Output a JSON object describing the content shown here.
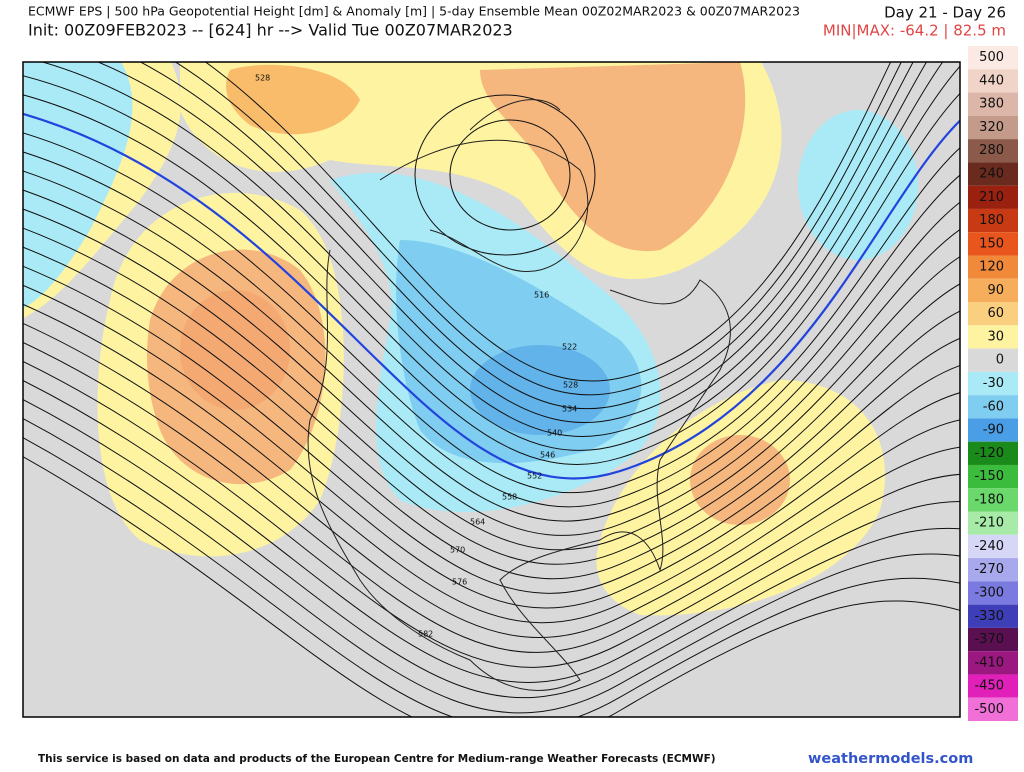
{
  "header": {
    "title": "ECMWF EPS | 500 hPa Geopotential Height [dm] & Anomaly [m] | 5-day Ensemble Mean 00Z02MAR2023 & 00Z07MAR2023",
    "subtitle": "Init: 00Z09FEB2023 -- [624] hr --> Valid Tue 00Z07MAR2023",
    "period": "Day 21 - Day 26",
    "minmax": "MIN|MAX: -64.2 | 82.5 m"
  },
  "contour_labels": [
    "516",
    "522",
    "528",
    "534",
    "540",
    "546",
    "552",
    "558",
    "564",
    "570",
    "576",
    "582",
    "528"
  ],
  "colorbar": [
    {
      "label": "500",
      "color": "#fbe9e4"
    },
    {
      "label": "440",
      "color": "#f1d4c8"
    },
    {
      "label": "380",
      "color": "#dcb6a8"
    },
    {
      "label": "320",
      "color": "#c49a8a"
    },
    {
      "label": "280",
      "color": "#8c5a4a"
    },
    {
      "label": "240",
      "color": "#6a2a1e"
    },
    {
      "label": "210",
      "color": "#9a2010"
    },
    {
      "label": "180",
      "color": "#c83a14"
    },
    {
      "label": "150",
      "color": "#e8561e"
    },
    {
      "label": "120",
      "color": "#f08a3a"
    },
    {
      "label": "90",
      "color": "#f6ae5c"
    },
    {
      "label": "60",
      "color": "#fbcf80"
    },
    {
      "label": "30",
      "color": "#fdf3a0"
    },
    {
      "label": "0",
      "color": "#d9d9d9"
    },
    {
      "label": "-30",
      "color": "#a9eaf6"
    },
    {
      "label": "-60",
      "color": "#7fcdf0"
    },
    {
      "label": "-90",
      "color": "#4a9ee6"
    },
    {
      "label": "-120",
      "color": "#1a8a1a"
    },
    {
      "label": "-150",
      "color": "#3cbc3c"
    },
    {
      "label": "-180",
      "color": "#6ad86a"
    },
    {
      "label": "-210",
      "color": "#a8eaa8"
    },
    {
      "label": "-240",
      "color": "#d6d6f6"
    },
    {
      "label": "-270",
      "color": "#a8a8ec"
    },
    {
      "label": "-300",
      "color": "#7a7ae0"
    },
    {
      "label": "-330",
      "color": "#3e3eb8"
    },
    {
      "label": "-370",
      "color": "#5a1050"
    },
    {
      "label": "-410",
      "color": "#9a1880"
    },
    {
      "label": "-450",
      "color": "#e020b8"
    },
    {
      "label": "-500",
      "color": "#f070d8"
    }
  ],
  "footer": {
    "credit": "This service is based on data and products of the European Centre for Medium-range Weather Forecasts (ECMWF)",
    "site": "weathermodels.com"
  }
}
